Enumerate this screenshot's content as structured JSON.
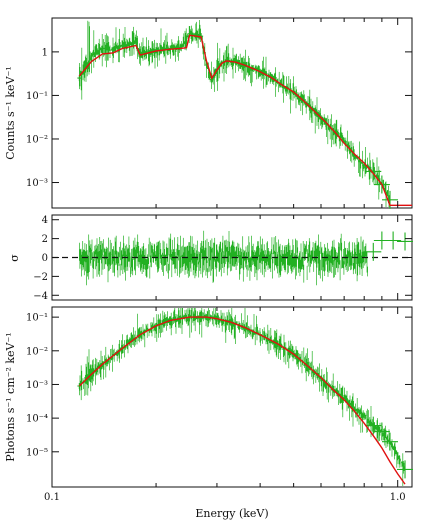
{
  "colors": {
    "data": "#22b022",
    "model": "#e01010",
    "axes": "#111111",
    "zero_line": "#111111"
  },
  "chart_data": [
    {
      "type": "line",
      "panel": "counts-spectrum",
      "ylabel": "Counts s⁻¹ keV⁻¹",
      "xscale": "log",
      "yscale": "log",
      "xlim": [
        0.1,
        1.1
      ],
      "ylim": [
        0.00026,
        6
      ],
      "yticks": [
        {
          "v": 1,
          "label": "1"
        },
        {
          "v": 0.1,
          "label": "10⁻¹"
        },
        {
          "v": 0.01,
          "label": "10⁻²"
        },
        {
          "v": 0.001,
          "label": "10⁻³"
        }
      ],
      "series": [
        {
          "role": "data",
          "x": [
            0.12,
            0.125,
            0.13,
            0.14,
            0.15,
            0.16,
            0.175,
            0.18,
            0.185,
            0.19,
            0.2,
            0.21,
            0.22,
            0.235,
            0.25,
            0.26,
            0.27,
            0.28,
            0.29,
            0.3,
            0.31,
            0.32,
            0.34,
            0.36,
            0.38,
            0.4,
            0.43,
            0.46,
            0.5,
            0.54,
            0.58,
            0.62,
            0.66,
            0.7,
            0.75,
            0.8,
            0.85,
            0.9,
            0.95
          ],
          "y": [
            0.25,
            0.45,
            0.8,
            1.2,
            1.1,
            1.4,
            1.6,
            0.9,
            0.95,
            1.0,
            1.1,
            1.15,
            1.2,
            1.25,
            2.6,
            2.4,
            2.3,
            0.5,
            0.23,
            0.4,
            0.55,
            0.65,
            0.6,
            0.5,
            0.42,
            0.35,
            0.26,
            0.18,
            0.12,
            0.07,
            0.04,
            0.022,
            0.014,
            0.009,
            0.004,
            0.0025,
            0.0018,
            0.0009,
            0.0004
          ]
        },
        {
          "role": "model",
          "x": [
            0.12,
            0.13,
            0.14,
            0.15,
            0.16,
            0.175,
            0.18,
            0.19,
            0.2,
            0.21,
            0.22,
            0.235,
            0.245,
            0.25,
            0.26,
            0.27,
            0.28,
            0.29,
            0.3,
            0.31,
            0.32,
            0.34,
            0.36,
            0.38,
            0.4,
            0.43,
            0.46,
            0.5,
            0.54,
            0.58,
            0.62,
            0.66,
            0.7,
            0.75,
            0.8,
            0.85,
            0.9,
            0.95,
            1.1
          ],
          "y": [
            0.28,
            0.6,
            0.9,
            0.95,
            1.2,
            1.4,
            0.85,
            0.95,
            1.05,
            1.1,
            1.15,
            1.2,
            1.25,
            2.4,
            2.3,
            2.2,
            0.6,
            0.25,
            0.38,
            0.55,
            0.62,
            0.58,
            0.5,
            0.42,
            0.35,
            0.26,
            0.18,
            0.12,
            0.07,
            0.04,
            0.024,
            0.014,
            0.008,
            0.0045,
            0.0028,
            0.0016,
            0.0009,
            0.0003,
            0.0003
          ]
        }
      ]
    },
    {
      "type": "scatter",
      "panel": "residuals",
      "ylabel": "σ",
      "xscale": "log",
      "xlim": [
        0.1,
        1.1
      ],
      "ylim": [
        -4.5,
        4.5
      ],
      "yticks": [
        {
          "v": 4,
          "label": "4"
        },
        {
          "v": 2,
          "label": "2"
        },
        {
          "v": 0,
          "label": "0"
        },
        {
          "v": -2,
          "label": "−2"
        },
        {
          "v": -4,
          "label": "−4"
        }
      ],
      "zero_line": true,
      "noise_range": [
        0.12,
        0.82
      ],
      "series": [
        {
          "role": "data",
          "x": [
            0.85,
            0.9,
            0.97,
            1.05
          ],
          "y": [
            0.6,
            1.8,
            1.8,
            1.7
          ]
        }
      ]
    },
    {
      "type": "line",
      "panel": "unfolded-spectrum",
      "xlabel": "Energy (keV)",
      "ylabel": "Photons s⁻¹ cm⁻² keV⁻¹",
      "xscale": "log",
      "yscale": "log",
      "xlim": [
        0.1,
        1.1
      ],
      "ylim": [
        9e-07,
        0.2
      ],
      "xticks": [
        {
          "v": 0.1,
          "label": "0.1"
        },
        {
          "v": 1,
          "label": "1.0"
        }
      ],
      "yticks": [
        {
          "v": 0.1,
          "label": "10⁻¹"
        },
        {
          "v": 0.01,
          "label": "10⁻²"
        },
        {
          "v": 0.001,
          "label": "10⁻³"
        },
        {
          "v": 0.0001,
          "label": "10⁻⁴"
        },
        {
          "v": 1e-05,
          "label": "10⁻⁵"
        }
      ],
      "series": [
        {
          "role": "data",
          "x": [
            0.12,
            0.13,
            0.14,
            0.16,
            0.18,
            0.2,
            0.22,
            0.25,
            0.28,
            0.3,
            0.33,
            0.36,
            0.4,
            0.45,
            0.5,
            0.55,
            0.6,
            0.65,
            0.7,
            0.75,
            0.8,
            0.85,
            0.9,
            0.95,
            1.05
          ],
          "y": [
            0.0009,
            0.002,
            0.004,
            0.012,
            0.03,
            0.055,
            0.08,
            0.1,
            0.1,
            0.09,
            0.07,
            0.05,
            0.03,
            0.016,
            0.008,
            0.0035,
            0.0015,
            0.0007,
            0.0004,
            0.00018,
            0.00012,
            6e-05,
            4e-05,
            2e-05,
            3e-06
          ]
        },
        {
          "role": "model",
          "x": [
            0.12,
            0.13,
            0.14,
            0.16,
            0.18,
            0.2,
            0.22,
            0.25,
            0.28,
            0.3,
            0.33,
            0.36,
            0.4,
            0.45,
            0.5,
            0.55,
            0.6,
            0.65,
            0.7,
            0.75,
            0.8,
            0.85,
            0.9,
            0.95,
            1.0,
            1.05
          ],
          "y": [
            0.0009,
            0.002,
            0.004,
            0.012,
            0.03,
            0.055,
            0.08,
            0.1,
            0.1,
            0.09,
            0.07,
            0.05,
            0.03,
            0.016,
            0.008,
            0.0035,
            0.0016,
            0.0007,
            0.00035,
            0.00016,
            7e-05,
            3e-05,
            1.3e-05,
            5e-06,
            2.2e-06,
            1.1e-06
          ]
        }
      ]
    }
  ]
}
